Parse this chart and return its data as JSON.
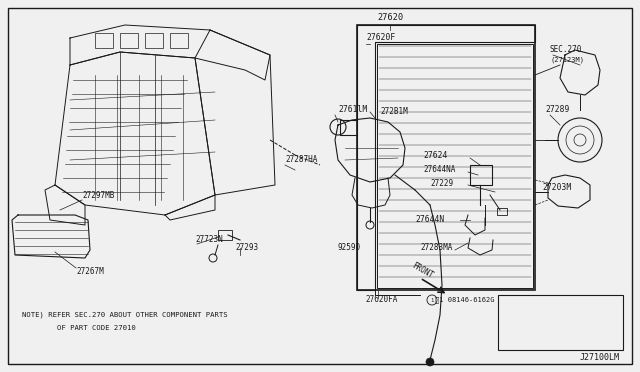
{
  "bg_color": "#f0f0f0",
  "line_color": "#1a1a1a",
  "diagram_number": "J27100LM",
  "note_line1": "NOTE) REFER SEC.270 ABOUT OTHER COMPONENT PARTS",
  "note_line2": "        OF PART CODE 27010",
  "fig_w": 6.4,
  "fig_h": 3.72,
  "dpi": 100
}
